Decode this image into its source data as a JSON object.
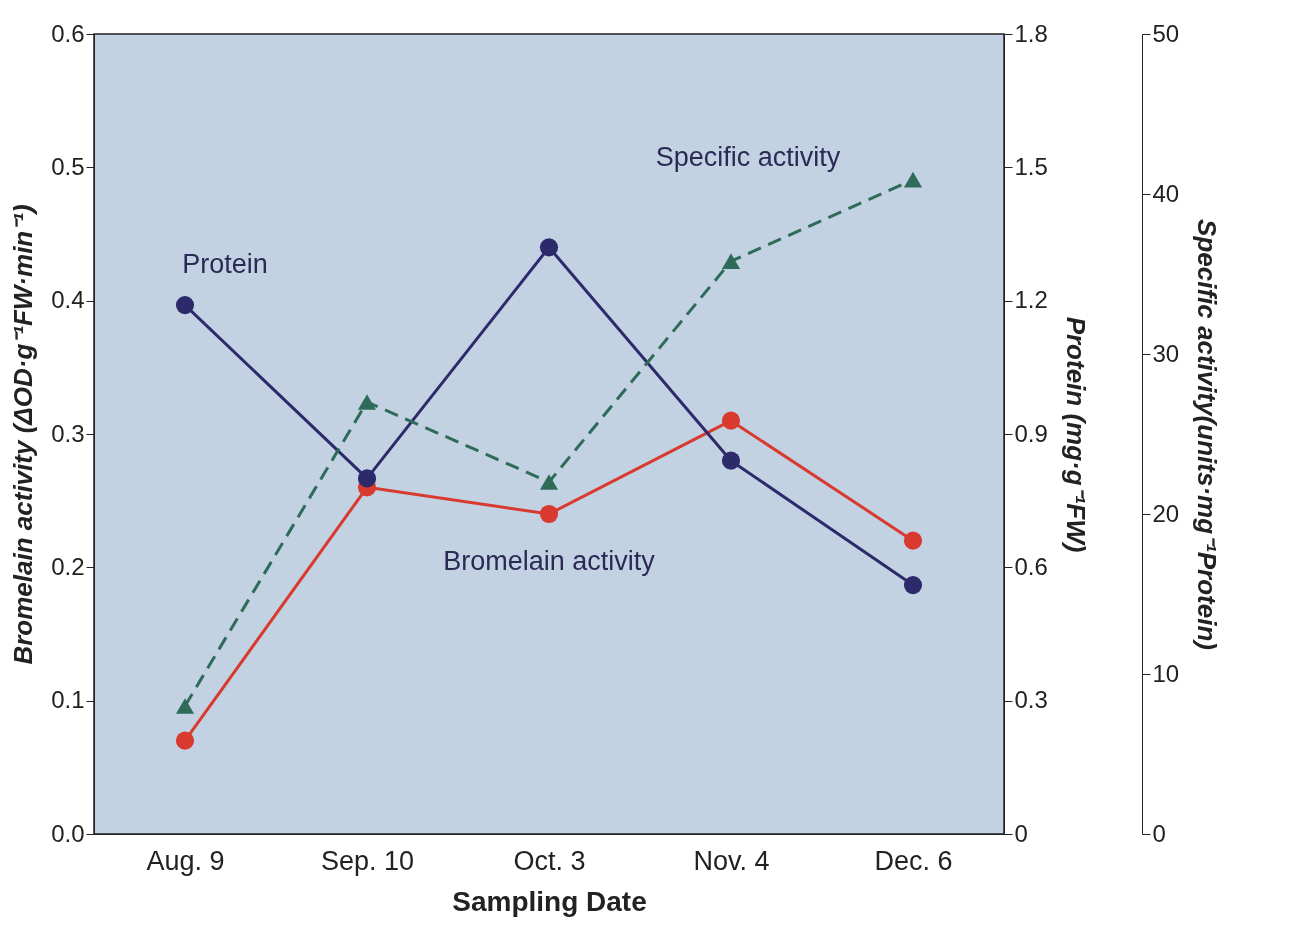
{
  "chart_data": {
    "type": "line",
    "xlabel": "Sampling Date",
    "ylabel": "Bromelain activity  (ΔOD·g⁻¹FW·min⁻¹)",
    "y2label": "Protein (mg·g⁻¹FW)",
    "y3label": "Specific activity(units·mg⁻¹Protein)",
    "categories": [
      "Aug. 9",
      "Sep. 10",
      "Oct. 3",
      "Nov. 4",
      "Dec. 6"
    ],
    "ylim": [
      0,
      0.6
    ],
    "yticks": [
      {
        "value": 0,
        "label": "0.0"
      },
      0.1,
      0.2,
      0.3,
      0.4,
      0.5,
      0.6
    ],
    "y2lim": [
      0,
      1.8
    ],
    "y2ticks": [
      0,
      0.3,
      0.6,
      0.9,
      1.2,
      1.5,
      1.8
    ],
    "y3lim": [
      0,
      50
    ],
    "y3ticks": [
      0,
      10,
      20,
      30,
      40,
      50
    ],
    "grid": false,
    "series": [
      {
        "name": "Bromelain activity",
        "color": "#d93a2f",
        "values": [
          0.07,
          0.26,
          0.24,
          0.31,
          0.22
        ],
        "marker": "circle",
        "line_style": "solid"
      },
      {
        "name": "Protein",
        "color": "#2d2a6b",
        "axis": "y2",
        "values": [
          1.19,
          0.8,
          1.32,
          0.84,
          0.56
        ],
        "marker": "circle",
        "line_style": "solid"
      },
      {
        "name": "Specific activity",
        "color": "#2e6b58",
        "axis": "y3",
        "values": [
          8,
          27,
          22,
          35.8,
          40.9
        ],
        "marker": "triangle",
        "line_style": "dashed"
      }
    ]
  }
}
